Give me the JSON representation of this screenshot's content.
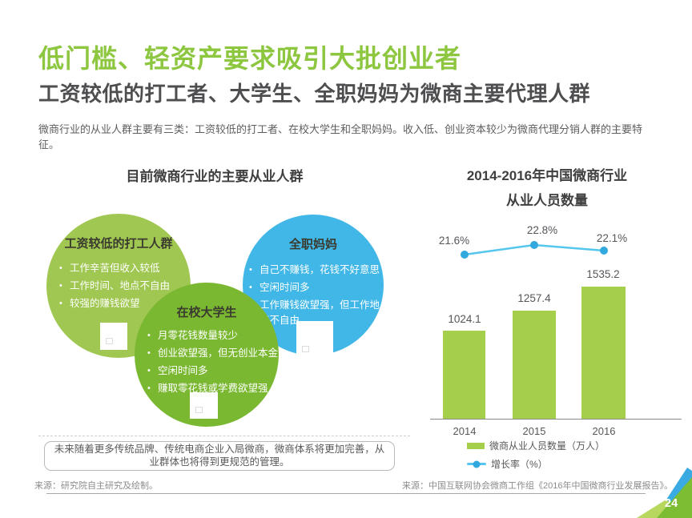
{
  "page": {
    "title": "低门槛、轻资产要求吸引大批创业者",
    "subtitle": "工资较低的打工者、大学生、全职妈妈为微商主要代理人群",
    "body": "微商行业的从业人群主要有三类：工资较低的打工者、在校大学生和全职妈妈。收入低、创业资本较少为微商代理分销人群的主要特征。",
    "page_number": "24"
  },
  "colors": {
    "title_green": "#8dc63f",
    "circle_worker": "#a0c751",
    "circle_student": "#7bb832",
    "circle_mom": "#41b7e7",
    "bar_green": "#a5cf4a",
    "line_blue": "#55c6ee",
    "marker_blue": "#31a9de",
    "corner_green": "#7dbd33",
    "corner_light_green": "#b7d75f",
    "corner_blue": "#3aabe2"
  },
  "diagram": {
    "title": "目前微商行业的主要从业人群",
    "groups": [
      {
        "name": "工资较低的打工人群",
        "points": [
          "工作辛苦但收入较低",
          "工作时间、地点不自由",
          "较强的赚钱欲望"
        ]
      },
      {
        "name": "在校大学生",
        "points": [
          "月零花钱数量较少",
          "创业欲望强，但无创业本金",
          "空闲时间多",
          "赚取零花钱或学费欲望强"
        ]
      },
      {
        "name": "全职妈妈",
        "points": [
          "自己不赚钱，花钱不好意思",
          "空闲时间多",
          "工作赚钱欲望强，但工作地点不自由"
        ]
      }
    ],
    "note": "未来随着更多传统品牌、传统电商企业入局微商，微商体系将更加完善，从业群体也将得到更规范的管理。",
    "source": "来源：研究院自主研究及绘制。"
  },
  "chart": {
    "title_line1": "2014-2016年中国微商行业",
    "title_line2": "从业人员数量",
    "source": "来源：中国互联网协会微商工作组《2016年中国微商行业发展报告》。"
  },
  "chart_data": {
    "type": "bar",
    "subtype": "bar+line combo",
    "title": "2014-2016年中国微商行业从业人员数量",
    "categories": [
      "2014",
      "2015",
      "2016"
    ],
    "series": [
      {
        "name": "微商从业人员数量（万人）",
        "type": "bar",
        "values": [
          1024.1,
          1257.4,
          1535.2
        ],
        "labels": [
          "1024.1",
          "1257.4",
          "1535.2"
        ]
      },
      {
        "name": "增长率（%）",
        "type": "line",
        "values": [
          21.6,
          22.8,
          22.1
        ],
        "labels": [
          "21.6%",
          "22.8%",
          "22.1%"
        ]
      }
    ],
    "legend_position": "bottom",
    "grid": false,
    "bar_axis_range": [
      0,
      1700
    ],
    "line_axis_range": [
      20,
      24
    ]
  }
}
